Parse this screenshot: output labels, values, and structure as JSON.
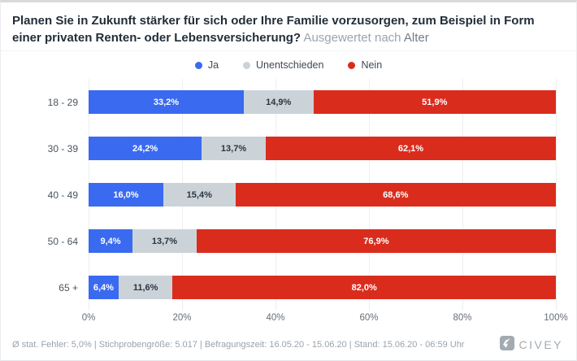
{
  "header": {
    "question": "Planen Sie in Zukunft stärker für sich oder Ihre Familie vorzusorgen, zum Beispiel in Form einer privaten Renten- oder Lebensversicherung?",
    "subtitle_prefix": " Ausgewertet nach ",
    "subtitle_value": "Alter"
  },
  "legend": [
    {
      "label": "Ja",
      "color": "#3a6af0"
    },
    {
      "label": "Unentschieden",
      "color": "#cbd3d9"
    },
    {
      "label": "Nein",
      "color": "#da2c1d"
    }
  ],
  "chart_data": {
    "type": "bar",
    "stacked": true,
    "orientation": "horizontal",
    "title": "Planen Sie in Zukunft stärker für sich oder Ihre Familie vorzusorgen, zum Beispiel in Form einer privaten Renten- oder Lebensversicherung? Ausgewertet nach Alter",
    "categories": [
      "18 - 29",
      "30 - 39",
      "40 - 49",
      "50 - 64",
      "65 +"
    ],
    "series": [
      {
        "name": "Ja",
        "color": "#3a6af0",
        "text_color": "#ffffff",
        "values": [
          33.2,
          24.2,
          16.0,
          9.4,
          6.4
        ],
        "labels": [
          "33,2%",
          "24,2%",
          "16,0%",
          "9,4%",
          "6,4%"
        ]
      },
      {
        "name": "Unentschieden",
        "color": "#cbd3d9",
        "text_color": "#2b3540",
        "values": [
          14.9,
          13.7,
          15.4,
          13.7,
          11.6
        ],
        "labels": [
          "14,9%",
          "13,7%",
          "15,4%",
          "13,7%",
          "11,6%"
        ]
      },
      {
        "name": "Nein",
        "color": "#da2c1d",
        "text_color": "#ffffff",
        "values": [
          51.9,
          62.1,
          68.6,
          76.9,
          82.0
        ],
        "labels": [
          "51,9%",
          "62,1%",
          "68,6%",
          "76,9%",
          "82,0%"
        ]
      }
    ],
    "x_ticks": [
      "0%",
      "20%",
      "40%",
      "60%",
      "80%",
      "100%"
    ],
    "xlim": [
      0,
      100
    ],
    "grid": true,
    "legend_position": "top"
  },
  "footer": {
    "stats": "Ø stat. Fehler: 5,0% | Stichprobengröße: 5.017 | Befragungszeit: 16.05.20 - 15.06.20 | Stand: 15.06.20 - 06:59 Uhr",
    "brand": "CIVEY"
  }
}
